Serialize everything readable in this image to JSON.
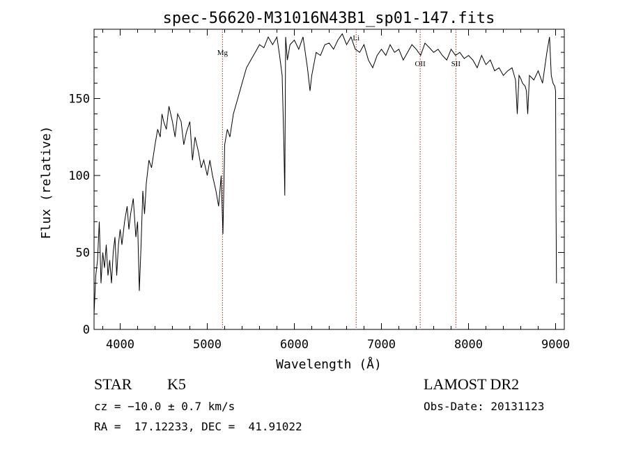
{
  "chart_data": {
    "type": "line",
    "title": "spec-56620-M31016N43B1_sp01-147.fits",
    "xlabel": "Wavelength (Å)",
    "ylabel": "Flux (relative)",
    "xlim": [
      3700,
      9100
    ],
    "ylim": [
      0,
      195
    ],
    "xticks": [
      4000,
      5000,
      6000,
      7000,
      8000,
      9000
    ],
    "yticks": [
      0,
      50,
      100,
      150
    ],
    "grid": false,
    "series": [
      {
        "x": [
          3700,
          3720,
          3740,
          3760,
          3780,
          3800,
          3820,
          3840,
          3860,
          3880,
          3900,
          3920,
          3940,
          3960,
          3980,
          4000,
          4020,
          4050,
          4080,
          4100,
          4120,
          4150,
          4180,
          4200,
          4220,
          4240,
          4260,
          4280,
          4300,
          4330,
          4360,
          4400,
          4430,
          4460,
          4480,
          4500,
          4530,
          4560,
          4600,
          4630,
          4660,
          4700,
          4730,
          4760,
          4800,
          4830,
          4860,
          4900,
          4930,
          4960,
          5000,
          5030,
          5060,
          5100,
          5130,
          5160,
          5180,
          5200,
          5230,
          5260,
          5300,
          5350,
          5400,
          5450,
          5500,
          5550,
          5600,
          5650,
          5700,
          5750,
          5800,
          5830,
          5860,
          5880,
          5890,
          5900,
          5920,
          5950,
          6000,
          6050,
          6100,
          6150,
          6180,
          6200,
          6250,
          6300,
          6350,
          6400,
          6450,
          6500,
          6550,
          6600,
          6650,
          6700,
          6750,
          6800,
          6850,
          6900,
          6950,
          7000,
          7050,
          7100,
          7150,
          7200,
          7250,
          7300,
          7350,
          7400,
          7450,
          7500,
          7550,
          7600,
          7650,
          7700,
          7750,
          7800,
          7850,
          7900,
          7950,
          8000,
          8050,
          8100,
          8150,
          8200,
          8250,
          8300,
          8350,
          8400,
          8450,
          8500,
          8540,
          8560,
          8580,
          8600,
          8620,
          8650,
          8665,
          8680,
          8700,
          8750,
          8800,
          8850,
          8880,
          8900,
          8930,
          8950,
          8970,
          8990,
          9000,
          9005,
          9010
        ],
        "y": [
          10,
          35,
          45,
          70,
          30,
          50,
          40,
          55,
          35,
          45,
          30,
          50,
          60,
          35,
          55,
          65,
          55,
          70,
          80,
          65,
          75,
          85,
          60,
          70,
          25,
          55,
          90,
          75,
          95,
          110,
          105,
          120,
          130,
          125,
          140,
          135,
          130,
          145,
          135,
          125,
          140,
          135,
          120,
          128,
          135,
          110,
          125,
          115,
          105,
          110,
          100,
          110,
          100,
          90,
          80,
          100,
          62,
          120,
          130,
          125,
          140,
          150,
          160,
          170,
          175,
          180,
          185,
          183,
          190,
          185,
          190,
          178,
          165,
          120,
          87,
          190,
          175,
          185,
          188,
          182,
          190,
          170,
          155,
          165,
          180,
          178,
          185,
          186,
          182,
          188,
          192,
          185,
          190,
          182,
          180,
          185,
          175,
          170,
          178,
          182,
          178,
          185,
          180,
          182,
          175,
          180,
          185,
          182,
          178,
          186,
          183,
          180,
          182,
          178,
          175,
          182,
          178,
          180,
          176,
          178,
          175,
          170,
          178,
          172,
          175,
          168,
          170,
          165,
          168,
          170,
          162,
          140,
          165,
          163,
          160,
          158,
          155,
          140,
          165,
          162,
          168,
          160,
          172,
          180,
          190,
          165,
          160,
          158,
          155,
          80,
          30
        ]
      }
    ],
    "lines": [
      {
        "x": 5175,
        "label": "Mg"
      },
      {
        "x": 6710,
        "label": "Li"
      },
      {
        "x": 7445,
        "label": "OII"
      },
      {
        "x": 7855,
        "label": "SII"
      }
    ]
  },
  "info": {
    "class": "STAR",
    "subclass": "K5",
    "cz": "cz = −10.0 ± 0.7 km/s",
    "radec": "RA =  17.12233, DEC =  41.91022",
    "survey": "LAMOST DR2",
    "obsdate": "Obs-Date: 20131123"
  }
}
